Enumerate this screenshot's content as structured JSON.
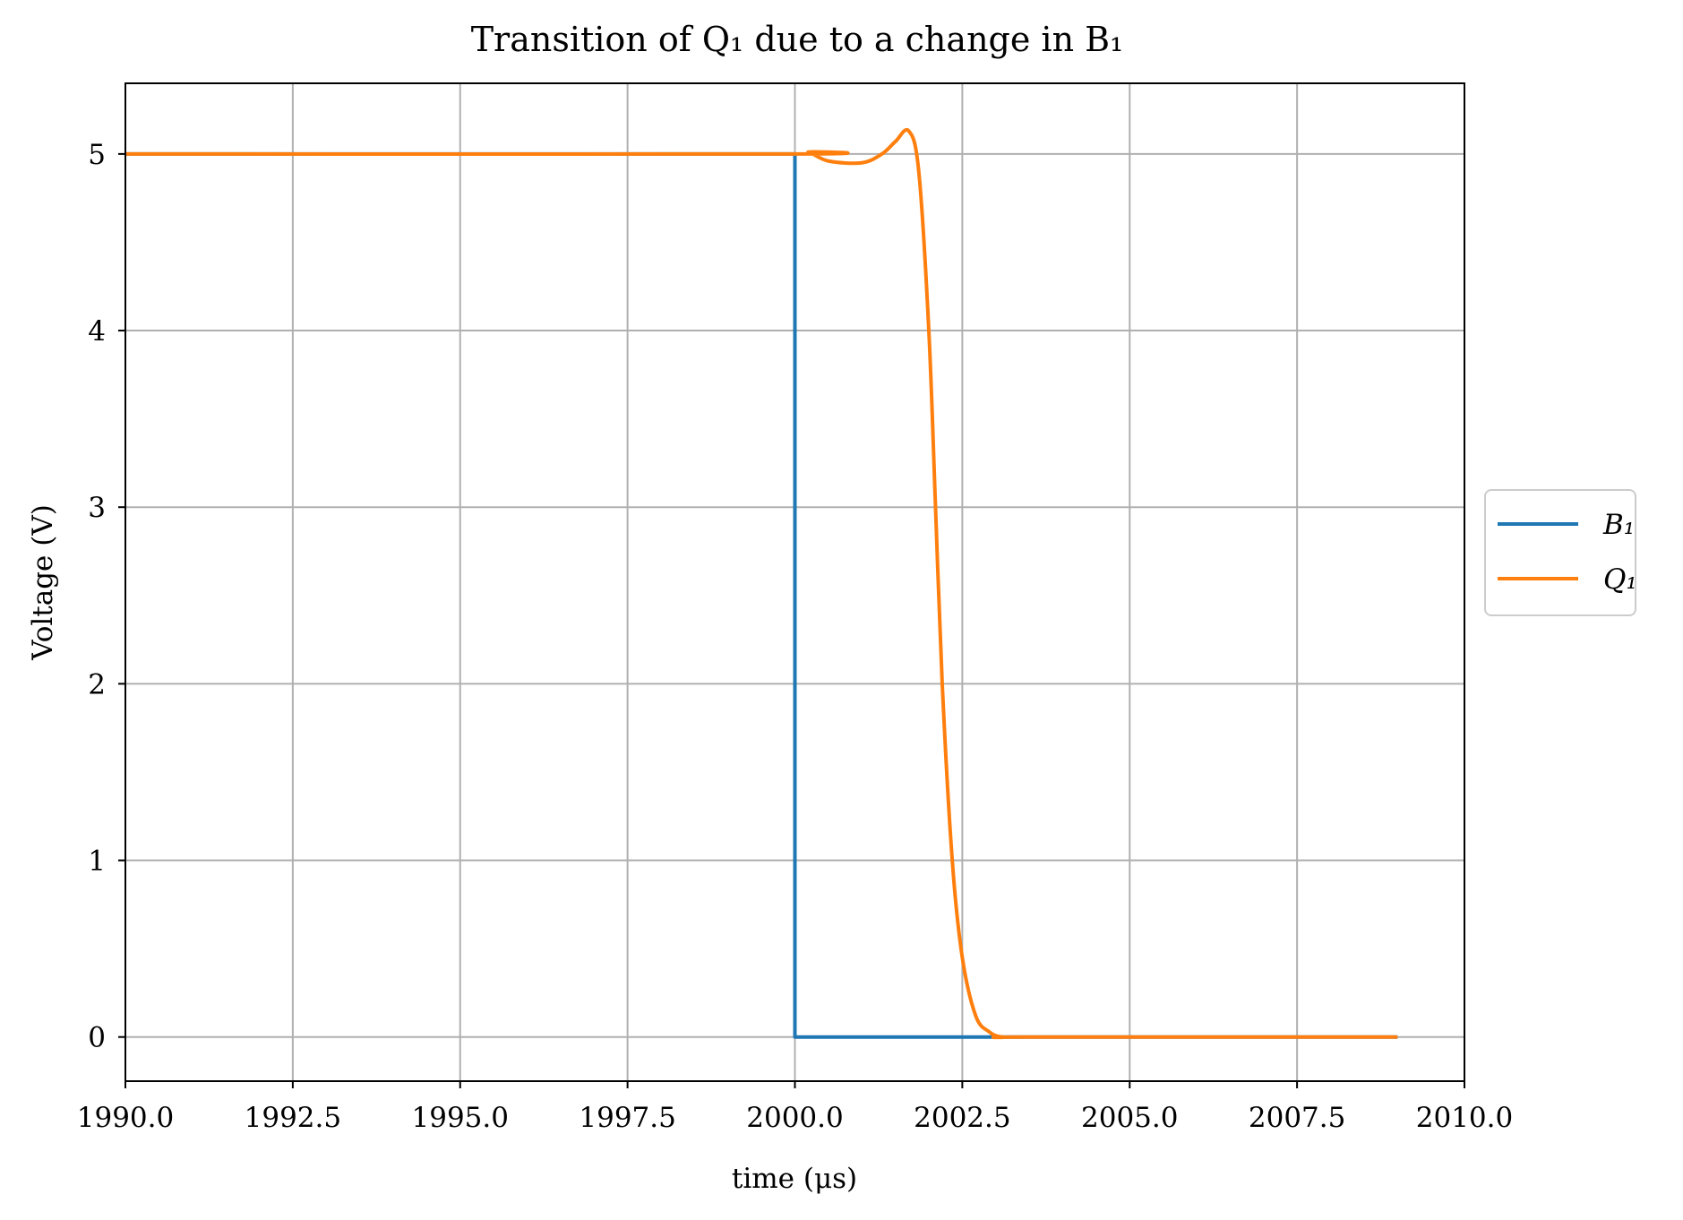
{
  "chart_data": {
    "type": "line",
    "title": "Transition of Q₁ due to a change in B₁",
    "xlabel": "time (μs)",
    "ylabel": "Voltage (V)",
    "xlim": [
      1990.0,
      2010.0
    ],
    "ylim": [
      -0.25,
      5.4
    ],
    "x_ticks": [
      "1990.0",
      "1992.5",
      "1995.0",
      "1997.5",
      "2000.0",
      "2002.5",
      "2005.0",
      "2007.5",
      "2010.0"
    ],
    "y_ticks": [
      "0",
      "1",
      "2",
      "3",
      "4",
      "5"
    ],
    "grid": true,
    "legend_position": "right, outside plot area",
    "series": [
      {
        "name": "B₁",
        "color": "#1f77b4",
        "x": [
          1990.0,
          2000.0,
          2000.0,
          2009.0
        ],
        "y": [
          5.0,
          5.0,
          0.0,
          0.0
        ]
      },
      {
        "name": "Q₁",
        "color": "#ff7f0e",
        "x": [
          1990.0,
          2000.0,
          2000.2,
          2000.5,
          2001.0,
          2001.3,
          2001.5,
          2001.7,
          2001.85,
          2002.0,
          2002.1,
          2002.2,
          2002.35,
          2002.5,
          2002.7,
          2002.9,
          2003.1,
          2003.5,
          2009.0
        ],
        "y": [
          5.0,
          5.0,
          5.01,
          4.96,
          4.95,
          5.0,
          5.07,
          5.13,
          4.9,
          4.0,
          3.0,
          2.0,
          1.0,
          0.45,
          0.12,
          0.03,
          0.0,
          0.0,
          0.0
        ]
      }
    ]
  }
}
